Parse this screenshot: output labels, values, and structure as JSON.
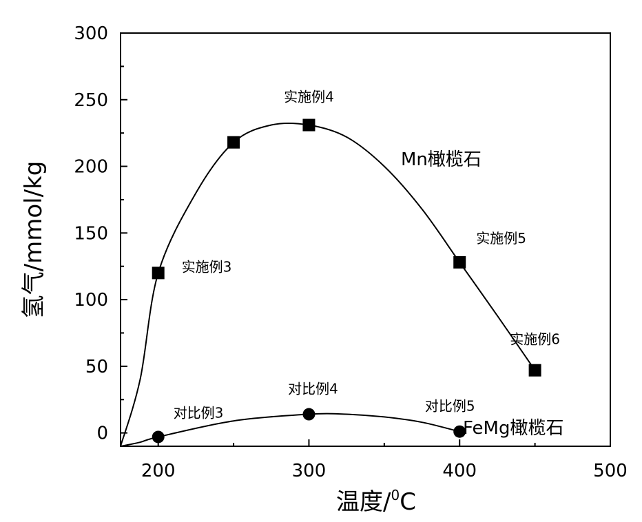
{
  "chart_data": {
    "type": "scatter",
    "xlabel": "温度/",
    "xlabel_unit_sup": "0",
    "xlabel_unit": "C",
    "ylabel": "氢气/mmol/kg",
    "xlim": [
      175,
      500
    ],
    "ylim": [
      -10,
      300
    ],
    "x_ticks": [
      200,
      300,
      400,
      500
    ],
    "y_ticks": [
      0,
      50,
      100,
      150,
      200,
      250,
      300
    ],
    "grid": false,
    "series": [
      {
        "name": "Mn橄榄石",
        "marker": "square",
        "x": [
          200,
          250,
          300,
          400,
          450
        ],
        "y": [
          120,
          218,
          231,
          128,
          47
        ],
        "point_labels": [
          "实施例3",
          "",
          "实施例4",
          "实施例5",
          "实施例6"
        ],
        "curve": [
          [
            175,
            -10
          ],
          [
            188,
            40
          ],
          [
            200,
            120
          ],
          [
            225,
            180
          ],
          [
            250,
            218
          ],
          [
            275,
            231
          ],
          [
            300,
            231
          ],
          [
            325,
            222
          ],
          [
            350,
            200
          ],
          [
            375,
            168
          ],
          [
            400,
            128
          ],
          [
            425,
            88
          ],
          [
            450,
            47
          ]
        ]
      },
      {
        "name": "FeMg橄榄石",
        "marker": "circle",
        "x": [
          200,
          300,
          400
        ],
        "y": [
          -3,
          14,
          1
        ],
        "point_labels": [
          "对比例3",
          "对比例4",
          "对比例5"
        ],
        "curve": [
          [
            175,
            -10
          ],
          [
            188,
            -7
          ],
          [
            200,
            -3
          ],
          [
            250,
            9
          ],
          [
            300,
            14
          ],
          [
            325,
            14
          ],
          [
            350,
            12
          ],
          [
            375,
            8
          ],
          [
            400,
            1
          ]
        ]
      }
    ],
    "annotations_color": "#000000"
  }
}
